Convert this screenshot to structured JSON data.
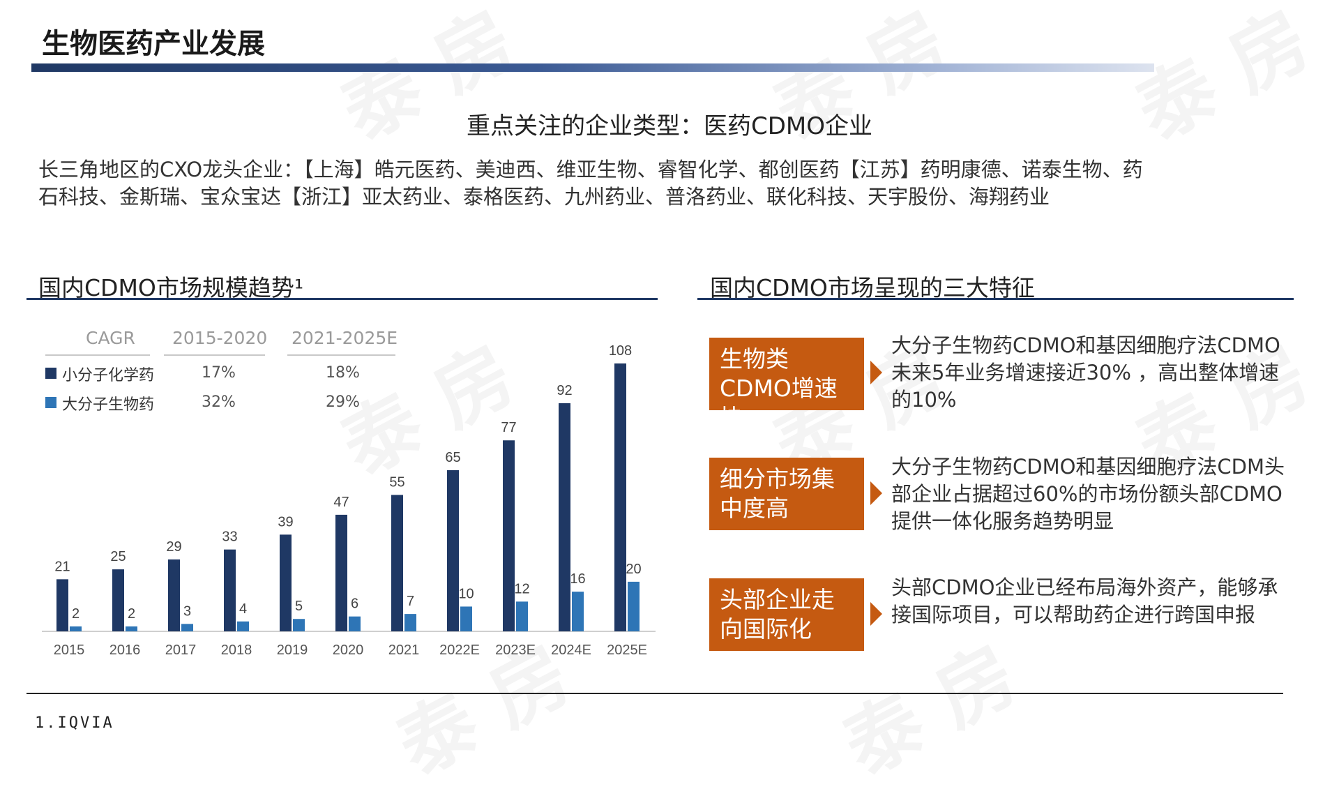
{
  "header": {
    "title": "生物医药产业发展"
  },
  "watermark": {
    "text": "泰 房"
  },
  "subtitle": "重点关注的企业类型：医药CDMO企业",
  "intro": {
    "line1": "长三角地区的CXO龙头企业：【上海】皓元医药、美迪西、维亚生物、睿智化学、都创医药【江苏】药明康德、诺泰生物、药",
    "line2": "石科技、金斯瑞、宝众宝达【浙江】亚太药业、泰格医药、九州药业、普洛药业、联化科技、天宇股份、海翔药业"
  },
  "left_section": {
    "title": "国内CDMO市场规模趋势¹"
  },
  "right_section": {
    "title": "国内CDMO市场呈现的三大特征"
  },
  "cagr": {
    "header": "CAGR",
    "period1": "2015-2020",
    "period2": "2021-2025E",
    "rows": [
      {
        "label": "小分子化学药",
        "v1": "17%",
        "v2": "18%",
        "color": "#1f3864"
      },
      {
        "label": "大分子生物药",
        "v1": "32%",
        "v2": "29%",
        "color": "#2e75b6"
      }
    ]
  },
  "chart_data": {
    "type": "bar",
    "categories": [
      "2015",
      "2016",
      "2017",
      "2018",
      "2019",
      "2020",
      "2021",
      "2022E",
      "2023E",
      "2024E",
      "2025E"
    ],
    "series": [
      {
        "name": "小分子化学药",
        "values": [
          21,
          25,
          29,
          33,
          39,
          47,
          55,
          65,
          77,
          92,
          108
        ],
        "color": "#1f3864"
      },
      {
        "name": "大分子生物药",
        "values": [
          2,
          2,
          3,
          4,
          5,
          6,
          7,
          10,
          12,
          16,
          20
        ],
        "color": "#2e75b6"
      }
    ],
    "ylim": [
      0,
      108
    ],
    "grid": false,
    "legend": "top-left"
  },
  "features": [
    {
      "label": "生物类CDMO增速快",
      "text": "大分子生物药CDMO和基因细胞疗法CDMO未来5年业务增速接近30% ，高出整体增速的10%"
    },
    {
      "label": "细分市场集中度高",
      "text": "大分子生物药CDMO和基因细胞疗法CDM头部企业占据超过60%的市场份额头部CDMO提供一体化服务趋势明显"
    },
    {
      "label": "头部企业走向国际化",
      "text": "头部CDMO企业已经布局海外资产，能够承接国际项目，可以帮助药企进行跨国申报"
    }
  ],
  "footnote": "1.IQVIA"
}
